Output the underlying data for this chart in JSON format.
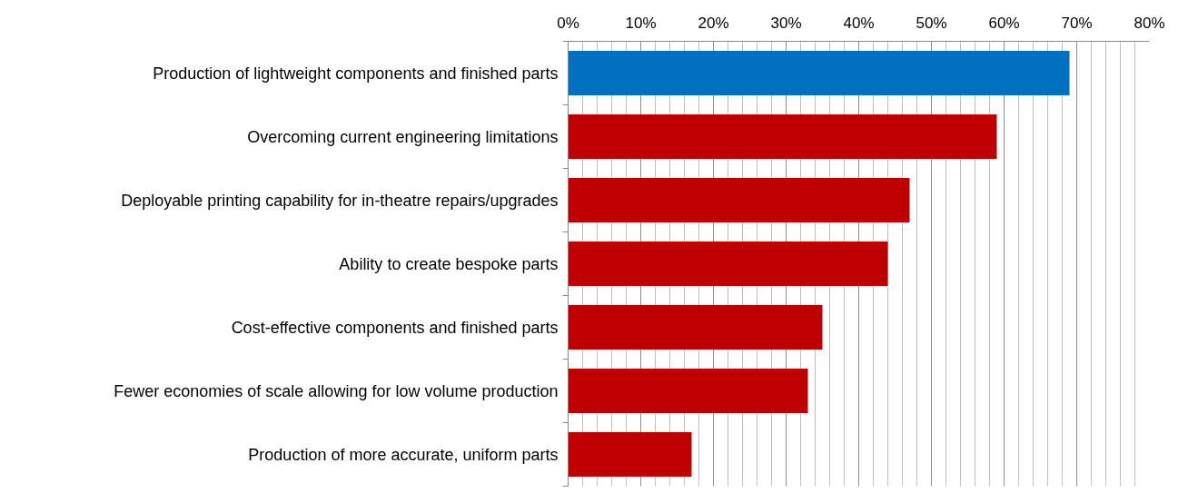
{
  "chart_data": {
    "type": "bar",
    "orientation": "horizontal",
    "categories": [
      "Production of lightweight components and finished parts",
      "Overcoming current engineering limitations",
      "Deployable printing capability for in-theatre repairs/upgrades",
      "Ability to create bespoke parts",
      "Cost-effective components and finished parts",
      "Fewer economies of scale allowing for low volume production",
      "Production of more accurate, uniform parts"
    ],
    "values": [
      69,
      59,
      47,
      44,
      35,
      33,
      17
    ],
    "colors": [
      "#0070c0",
      "#c00000",
      "#c00000",
      "#c00000",
      "#c00000",
      "#c00000",
      "#c00000"
    ],
    "xlim": [
      0,
      80
    ],
    "xticks": [
      {
        "value": 0,
        "label": "0%"
      },
      {
        "value": 10,
        "label": "10%"
      },
      {
        "value": 20,
        "label": "20%"
      },
      {
        "value": 30,
        "label": "30%"
      },
      {
        "value": 40,
        "label": "40%"
      },
      {
        "value": 50,
        "label": "50%"
      },
      {
        "value": 60,
        "label": "60%"
      },
      {
        "value": 70,
        "label": "70%"
      },
      {
        "value": 80,
        "label": "80%"
      }
    ],
    "grid": "x"
  }
}
